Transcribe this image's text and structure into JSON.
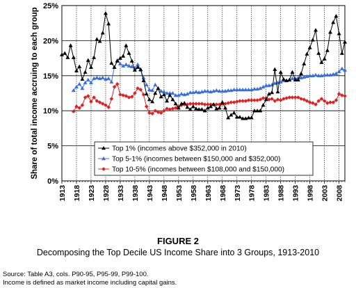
{
  "chart_data": {
    "type": "line",
    "ylabel": "Share of total income accruing to each group",
    "ylim": [
      0,
      25
    ],
    "yticks": [
      "0%",
      "5%",
      "10%",
      "15%",
      "20%",
      "25%"
    ],
    "xlim": [
      1913,
      2010
    ],
    "xticks": [
      1913,
      1918,
      1923,
      1928,
      1933,
      1938,
      1943,
      1948,
      1953,
      1958,
      1963,
      1968,
      1973,
      1978,
      1983,
      1988,
      1993,
      1998,
      2003,
      2008
    ],
    "grid": "vertical and horizontal gridlines",
    "legend_position": "bottom-center",
    "series": [
      {
        "name": "Top 1% (incomes above $352,000 in 2010)",
        "color": "#000000",
        "marker": "triangle",
        "x": [
          1913,
          1914,
          1915,
          1916,
          1917,
          1918,
          1919,
          1920,
          1921,
          1922,
          1923,
          1924,
          1925,
          1926,
          1927,
          1928,
          1929,
          1930,
          1931,
          1932,
          1933,
          1934,
          1935,
          1936,
          1937,
          1938,
          1939,
          1940,
          1941,
          1942,
          1943,
          1944,
          1945,
          1946,
          1947,
          1948,
          1949,
          1950,
          1951,
          1952,
          1953,
          1954,
          1955,
          1956,
          1957,
          1958,
          1959,
          1960,
          1961,
          1962,
          1963,
          1964,
          1965,
          1966,
          1967,
          1968,
          1969,
          1970,
          1971,
          1972,
          1973,
          1974,
          1975,
          1976,
          1977,
          1978,
          1979,
          1980,
          1981,
          1982,
          1983,
          1984,
          1985,
          1986,
          1987,
          1988,
          1989,
          1990,
          1991,
          1992,
          1993,
          1994,
          1995,
          1996,
          1997,
          1998,
          1999,
          2000,
          2001,
          2002,
          2003,
          2004,
          2005,
          2006,
          2007,
          2008,
          2009,
          2010
        ],
        "values": [
          18.0,
          18.2,
          17.6,
          19.3,
          17.6,
          15.7,
          16.3,
          14.5,
          15.5,
          17.2,
          16.2,
          17.6,
          20.2,
          19.9,
          21.1,
          23.9,
          22.4,
          16.8,
          16.2,
          17.1,
          17.5,
          17.8,
          19.3,
          18.2,
          17.1,
          15.8,
          16.2,
          15.9,
          14.3,
          12.4,
          11.6,
          11.3,
          12.5,
          13.2,
          12.0,
          12.3,
          11.4,
          12.2,
          11.6,
          11.0,
          10.4,
          11.0,
          11.1,
          10.5,
          10.2,
          10.6,
          10.3,
          10.2,
          10.2,
          10.0,
          10.4,
          10.6,
          10.9,
          10.3,
          10.4,
          11.2,
          10.4,
          9.0,
          9.4,
          9.7,
          9.1,
          9.1,
          8.9,
          8.9,
          9.0,
          9.0,
          10.0,
          10.0,
          10.0,
          10.8,
          11.6,
          12.4,
          12.6,
          15.9,
          12.7,
          15.5,
          14.5,
          14.3,
          14.4,
          15.5,
          14.4,
          14.4,
          15.3,
          16.7,
          18.1,
          19.0,
          20.1,
          21.5,
          18.2,
          16.9,
          17.4,
          18.6,
          21.2,
          22.6,
          23.5,
          21.0,
          18.2,
          19.8
        ]
      },
      {
        "name": "Top 5-1% (incomes between $150,000 and $352,000)",
        "color": "#3b6fe0",
        "marker": "triangle",
        "x": [
          1917,
          1918,
          1919,
          1920,
          1921,
          1922,
          1923,
          1924,
          1925,
          1926,
          1927,
          1928,
          1929,
          1930,
          1931,
          1932,
          1933,
          1934,
          1935,
          1936,
          1937,
          1938,
          1939,
          1940,
          1941,
          1942,
          1943,
          1944,
          1945,
          1946,
          1947,
          1948,
          1949,
          1950,
          1951,
          1952,
          1953,
          1954,
          1955,
          1956,
          1957,
          1958,
          1959,
          1960,
          1961,
          1962,
          1963,
          1964,
          1965,
          1966,
          1967,
          1968,
          1969,
          1970,
          1971,
          1972,
          1973,
          1974,
          1975,
          1976,
          1977,
          1978,
          1979,
          1980,
          1981,
          1982,
          1983,
          1984,
          1985,
          1986,
          1987,
          1988,
          1989,
          1990,
          1991,
          1992,
          1993,
          1994,
          1995,
          1996,
          1997,
          1998,
          1999,
          2000,
          2001,
          2002,
          2003,
          2004,
          2005,
          2006,
          2007,
          2008,
          2009,
          2010
        ],
        "values": [
          12.9,
          13.4,
          13.8,
          13.2,
          14.0,
          14.4,
          14.0,
          14.6,
          14.7,
          14.6,
          14.7,
          14.5,
          14.6,
          14.1,
          16.2,
          17.2,
          16.7,
          16.4,
          16.6,
          16.4,
          16.3,
          16.1,
          16.6,
          15.8,
          14.7,
          13.7,
          13.0,
          12.9,
          13.7,
          13.2,
          12.8,
          12.7,
          12.5,
          12.5,
          12.5,
          12.2,
          12.2,
          12.4,
          12.3,
          12.4,
          12.6,
          12.6,
          12.7,
          12.6,
          12.7,
          12.8,
          12.8,
          12.7,
          12.8,
          12.9,
          12.8,
          12.8,
          12.8,
          12.9,
          12.9,
          13.0,
          13.0,
          13.0,
          13.0,
          13.0,
          13.0,
          13.0,
          13.1,
          13.1,
          13.2,
          13.4,
          13.6,
          13.6,
          13.7,
          13.9,
          14.0,
          14.1,
          14.3,
          14.3,
          14.4,
          14.6,
          14.6,
          14.7,
          14.7,
          14.8,
          14.9,
          15.0,
          15.0,
          15.1,
          15.0,
          15.0,
          15.1,
          15.1,
          15.1,
          15.2,
          15.3,
          15.6,
          16.0,
          15.8
        ]
      },
      {
        "name": "Top 10-5% (incomes between $108,000 and $150,000)",
        "color": "#e02020",
        "marker": "diamond",
        "x": [
          1917,
          1918,
          1919,
          1920,
          1921,
          1922,
          1923,
          1924,
          1925,
          1926,
          1927,
          1928,
          1929,
          1930,
          1931,
          1932,
          1933,
          1934,
          1935,
          1936,
          1937,
          1938,
          1939,
          1940,
          1941,
          1942,
          1943,
          1944,
          1945,
          1946,
          1947,
          1948,
          1949,
          1950,
          1951,
          1952,
          1953,
          1954,
          1955,
          1956,
          1957,
          1958,
          1959,
          1960,
          1961,
          1962,
          1963,
          1964,
          1965,
          1966,
          1967,
          1968,
          1969,
          1970,
          1971,
          1972,
          1973,
          1974,
          1975,
          1976,
          1977,
          1978,
          1979,
          1980,
          1981,
          1982,
          1983,
          1984,
          1985,
          1986,
          1987,
          1988,
          1989,
          1990,
          1991,
          1992,
          1993,
          1994,
          1995,
          1996,
          1997,
          1998,
          1999,
          2000,
          2001,
          2002,
          2003,
          2004,
          2005,
          2006,
          2007,
          2008,
          2009,
          2010
        ],
        "values": [
          9.9,
          10.6,
          10.4,
          10.8,
          11.9,
          12.1,
          11.3,
          11.9,
          11.4,
          11.2,
          11.0,
          10.8,
          10.5,
          11.7,
          13.4,
          13.8,
          12.3,
          12.2,
          12.1,
          11.9,
          12.0,
          12.5,
          13.2,
          13.0,
          12.3,
          10.6,
          9.7,
          9.6,
          10.0,
          9.8,
          9.7,
          10.0,
          10.3,
          10.2,
          10.3,
          10.4,
          10.6,
          10.8,
          10.9,
          10.9,
          11.0,
          11.0,
          11.0,
          11.0,
          11.0,
          10.9,
          10.9,
          10.9,
          10.9,
          10.9,
          10.9,
          11.0,
          11.0,
          11.1,
          11.2,
          11.2,
          11.3,
          11.4,
          11.4,
          11.4,
          11.5,
          11.5,
          11.5,
          11.5,
          11.6,
          11.8,
          11.8,
          11.6,
          11.7,
          11.4,
          11.6,
          11.5,
          11.7,
          11.8,
          11.9,
          11.9,
          11.9,
          11.9,
          11.7,
          11.6,
          11.4,
          11.2,
          11.1,
          10.9,
          11.4,
          11.7,
          11.4,
          11.1,
          11.2,
          11.2,
          11.5,
          12.4,
          12.2,
          12.1
        ]
      }
    ]
  },
  "figure": {
    "number": "FIGURE 2",
    "title": "Decomposing the Top Decile US Income Share into 3 Groups, 1913-2010"
  },
  "notes": {
    "source": "Source: Table A3, cols. P90-95, P95-99, P99-100.",
    "definition": "Income is defined as market income including capital gains."
  }
}
